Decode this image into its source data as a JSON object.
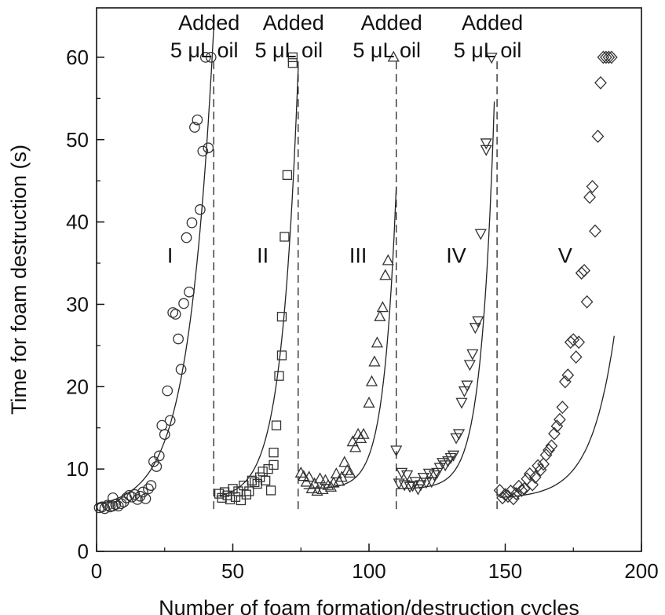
{
  "chart_data": {
    "type": "scatter",
    "xlabel": "Number of foam formation/destruction cycles",
    "ylabel": "Time for foam destruction (s)",
    "xlim": [
      0,
      200
    ],
    "ylim": [
      0,
      66
    ],
    "x_ticks": [
      0,
      50,
      100,
      150,
      200
    ],
    "y_ticks": [
      0,
      10,
      20,
      30,
      40,
      50,
      60
    ],
    "grid": false,
    "legend": "none",
    "oil_additions": [
      {
        "x": 43,
        "label_line1": "Added",
        "label_line2": "5 μL oil"
      },
      {
        "x": 74,
        "label_line1": "Added",
        "label_line2": "5 μL oil"
      },
      {
        "x": 110,
        "label_line1": "Added",
        "label_line2": "5 μL oil"
      },
      {
        "x": 147,
        "label_line1": "Added",
        "label_line2": "5 μL oil"
      }
    ],
    "series": [
      {
        "name": "I",
        "marker": "circle",
        "label_pos": [
          27,
          36
        ],
        "fit": {
          "type": "exp",
          "base": 5.2,
          "a": 0.6,
          "x0": 1,
          "k": 0.109,
          "x_start": 0,
          "x_end": 44
        },
        "points": [
          [
            1,
            5.3
          ],
          [
            2,
            5.4
          ],
          [
            3,
            5.2
          ],
          [
            4,
            5.6
          ],
          [
            5,
            5.4
          ],
          [
            6,
            6.5
          ],
          [
            6,
            5.5
          ],
          [
            7,
            5.7
          ],
          [
            8,
            5.5
          ],
          [
            9,
            5.8
          ],
          [
            10,
            6.0
          ],
          [
            11,
            6.5
          ],
          [
            12,
            6.8
          ],
          [
            13,
            6.6
          ],
          [
            14,
            6.9
          ],
          [
            15,
            6.3
          ],
          [
            16,
            6.7
          ],
          [
            17,
            7.2
          ],
          [
            18,
            6.4
          ],
          [
            19,
            7.6
          ],
          [
            20,
            8.0
          ],
          [
            21,
            10.9
          ],
          [
            22,
            10.3
          ],
          [
            23,
            11.6
          ],
          [
            24,
            15.3
          ],
          [
            25,
            14.2
          ],
          [
            26,
            19.5
          ],
          [
            27,
            15.9
          ],
          [
            28,
            29.0
          ],
          [
            29,
            28.8
          ],
          [
            30,
            25.8
          ],
          [
            31,
            22.1
          ],
          [
            32,
            30.1
          ],
          [
            33,
            38.1
          ],
          [
            34,
            31.5
          ],
          [
            35,
            39.9
          ],
          [
            36,
            51.5
          ],
          [
            37,
            52.4
          ],
          [
            38,
            41.5
          ],
          [
            39,
            48.6
          ],
          [
            40,
            60.0
          ],
          [
            41,
            49.0
          ],
          [
            42,
            60.0
          ]
        ]
      },
      {
        "name": "II",
        "marker": "square",
        "label_pos": [
          61,
          36
        ],
        "fit": {
          "type": "exp",
          "base": 6.3,
          "a": 0.45,
          "x0": 45,
          "k": 0.164,
          "x_start": 44,
          "x_end": 74
        },
        "points": [
          [
            45,
            7.0
          ],
          [
            46,
            6.5
          ],
          [
            47,
            7.2
          ],
          [
            48,
            6.8
          ],
          [
            49,
            6.3
          ],
          [
            50,
            7.6
          ],
          [
            51,
            6.6
          ],
          [
            52,
            7.3
          ],
          [
            53,
            6.2
          ],
          [
            54,
            8.0
          ],
          [
            55,
            6.9
          ],
          [
            56,
            7.3
          ],
          [
            57,
            8.6
          ],
          [
            58,
            8.4
          ],
          [
            59,
            8.2
          ],
          [
            60,
            9.0
          ],
          [
            61,
            9.7
          ],
          [
            62,
            8.6
          ],
          [
            63,
            10.0
          ],
          [
            64,
            7.4
          ],
          [
            65,
            10.5
          ],
          [
            65,
            12.0
          ],
          [
            66,
            15.3
          ],
          [
            67,
            21.3
          ],
          [
            68,
            23.8
          ],
          [
            68,
            28.5
          ],
          [
            69,
            38.2
          ],
          [
            70,
            45.7
          ],
          [
            72,
            59.3
          ],
          [
            72,
            60.0
          ]
        ]
      },
      {
        "name": "III",
        "marker": "triangle-up",
        "label_pos": [
          96,
          36
        ],
        "fit": {
          "type": "exp",
          "base": 7.6,
          "a": 0.15,
          "x0": 85,
          "k": 0.22,
          "x_start": 76,
          "x_end": 110,
          "dip": 1.4
        },
        "points": [
          [
            75,
            9.5
          ],
          [
            76,
            9.1
          ],
          [
            77,
            8.4
          ],
          [
            78,
            9.0
          ],
          [
            79,
            7.6
          ],
          [
            80,
            8.2
          ],
          [
            81,
            7.3
          ],
          [
            82,
            8.8
          ],
          [
            83,
            7.5
          ],
          [
            84,
            8.6
          ],
          [
            85,
            8.0
          ],
          [
            86,
            7.8
          ],
          [
            87,
            8.3
          ],
          [
            88,
            9.4
          ],
          [
            89,
            8.5
          ],
          [
            90,
            9.0
          ],
          [
            91,
            10.8
          ],
          [
            92,
            9.8
          ],
          [
            93,
            9.5
          ],
          [
            94,
            13.3
          ],
          [
            95,
            12.6
          ],
          [
            96,
            14.2
          ],
          [
            97,
            13.7
          ],
          [
            98,
            14.2
          ],
          [
            100,
            18.0
          ],
          [
            101,
            20.6
          ],
          [
            102,
            23.0
          ],
          [
            103,
            25.3
          ],
          [
            104,
            28.5
          ],
          [
            105,
            29.6
          ],
          [
            106,
            33.5
          ],
          [
            107,
            35.3
          ],
          [
            109,
            60.0
          ]
        ]
      },
      {
        "name": "IV",
        "marker": "triangle-down",
        "label_pos": [
          132,
          36
        ],
        "fit": {
          "type": "exp",
          "base": 7.6,
          "a": 0.2,
          "x0": 120,
          "k": 0.21,
          "x_start": 110,
          "x_end": 146,
          "dip": 1.2
        },
        "points": [
          [
            110,
            12.3
          ],
          [
            111,
            8.3
          ],
          [
            112,
            9.6
          ],
          [
            113,
            8.1
          ],
          [
            114,
            9.3
          ],
          [
            115,
            7.9
          ],
          [
            116,
            8.0
          ],
          [
            117,
            8.5
          ],
          [
            118,
            7.6
          ],
          [
            119,
            8.1
          ],
          [
            120,
            9.0
          ],
          [
            121,
            8.4
          ],
          [
            122,
            9.5
          ],
          [
            123,
            8.5
          ],
          [
            124,
            9.3
          ],
          [
            125,
            9.6
          ],
          [
            126,
            10.2
          ],
          [
            127,
            10.8
          ],
          [
            128,
            10.5
          ],
          [
            129,
            11.0
          ],
          [
            130,
            11.4
          ],
          [
            131,
            11.7
          ],
          [
            132,
            13.8
          ],
          [
            133,
            14.3
          ],
          [
            134,
            18.1
          ],
          [
            135,
            19.5
          ],
          [
            136,
            20.2
          ],
          [
            137,
            22.7
          ],
          [
            138,
            24.0
          ],
          [
            139,
            27.2
          ],
          [
            140,
            28.0
          ],
          [
            141,
            38.6
          ],
          [
            143,
            48.8
          ],
          [
            143,
            49.6
          ],
          [
            145,
            60.0
          ]
        ]
      },
      {
        "name": "V",
        "marker": "diamond",
        "label_pos": [
          172,
          36
        ],
        "fit": {
          "type": "exp",
          "base": 6.4,
          "a": 0.25,
          "x0": 152,
          "k": 0.115,
          "x_start": 148,
          "x_end": 190
        },
        "points": [
          [
            148,
            7.4
          ],
          [
            149,
            6.5
          ],
          [
            150,
            6.9
          ],
          [
            151,
            6.7
          ],
          [
            152,
            7.3
          ],
          [
            153,
            6.4
          ],
          [
            154,
            7.0
          ],
          [
            155,
            7.9
          ],
          [
            156,
            7.4
          ],
          [
            157,
            7.6
          ],
          [
            158,
            8.8
          ],
          [
            159,
            9.4
          ],
          [
            160,
            8.1
          ],
          [
            161,
            9.0
          ],
          [
            162,
            10.4
          ],
          [
            163,
            9.9
          ],
          [
            164,
            10.6
          ],
          [
            165,
            11.7
          ],
          [
            166,
            12.3
          ],
          [
            167,
            12.8
          ],
          [
            168,
            14.3
          ],
          [
            169,
            15.2
          ],
          [
            170,
            16.0
          ],
          [
            171,
            17.5
          ],
          [
            172,
            20.6
          ],
          [
            173,
            21.4
          ],
          [
            174,
            25.4
          ],
          [
            175,
            25.7
          ],
          [
            176,
            23.6
          ],
          [
            177,
            25.4
          ],
          [
            178,
            33.8
          ],
          [
            179,
            34.1
          ],
          [
            180,
            30.3
          ],
          [
            181,
            43.0
          ],
          [
            182,
            44.3
          ],
          [
            183,
            38.9
          ],
          [
            184,
            50.4
          ],
          [
            185,
            56.9
          ],
          [
            186,
            60.0
          ],
          [
            187,
            60.0
          ],
          [
            188,
            60.0
          ],
          [
            189,
            60.0
          ]
        ]
      }
    ]
  }
}
